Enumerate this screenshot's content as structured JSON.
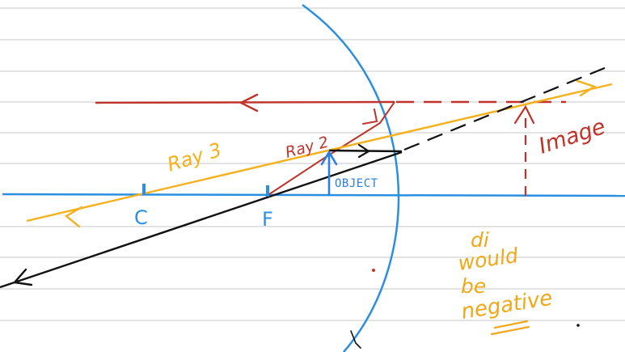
{
  "labels": {
    "ray3": "Ray 3",
    "ray2": "Ray 2",
    "object": "OBJECT",
    "image": "Image",
    "center": "C",
    "focus": "F",
    "note_line1": "di",
    "note_line2": "would",
    "note_line3": "be",
    "note_line4": "negative"
  },
  "colors": {
    "ruled_line": "#d2d2d2",
    "mirror": "#2b8fe0",
    "axis": "#2b8fe0",
    "ray2": "#c0332b",
    "ray3": "#f5b01a",
    "black_ray": "#111111",
    "object_arrow": "#2b7fe0",
    "image_arrow": "#c0332b",
    "note": "#f0a818"
  }
}
